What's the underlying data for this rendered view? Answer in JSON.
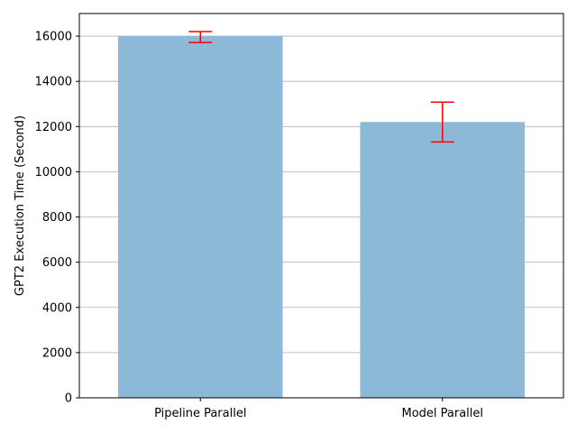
{
  "chart_data": {
    "type": "bar",
    "title": "",
    "xlabel": "",
    "ylabel": "GPT2 Execution Time (Second)",
    "categories": [
      "Pipeline Parallel",
      "Model Parallel"
    ],
    "values": [
      16000,
      12200
    ],
    "error_low": [
      15720,
      11320
    ],
    "error_high": [
      16200,
      13080
    ],
    "ylim": [
      0,
      17000
    ],
    "yticks": [
      0,
      2000,
      4000,
      6000,
      8000,
      10000,
      12000,
      14000,
      16000
    ],
    "grid": "horizontal",
    "bar_color": "#8db9d9",
    "error_color": "#ff0000"
  }
}
